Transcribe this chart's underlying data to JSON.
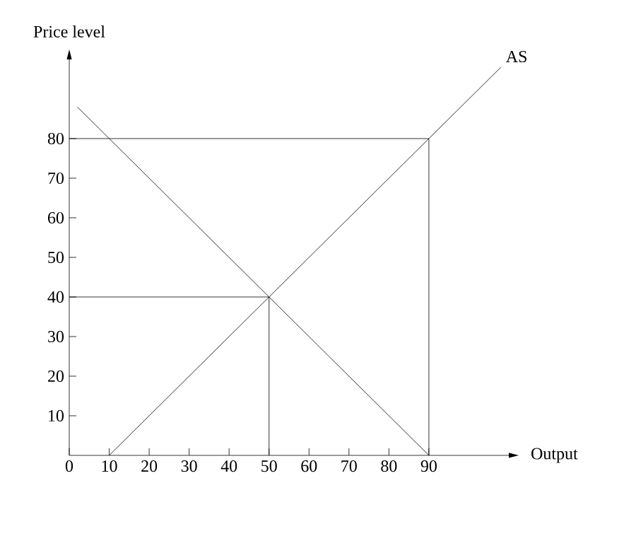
{
  "chart_data": {
    "type": "line",
    "xlabel": "Output",
    "ylabel": "Price level",
    "xlim": [
      0,
      110
    ],
    "ylim": [
      0,
      100
    ],
    "xticks": [
      0,
      10,
      20,
      30,
      40,
      50,
      60,
      70,
      80,
      90
    ],
    "yticks": [
      10,
      20,
      30,
      40,
      50,
      60,
      70,
      80
    ],
    "series": [
      {
        "name": "AS",
        "color": "#000000",
        "x": [
          10,
          108
        ],
        "values": [
          0,
          98
        ]
      },
      {
        "color": "#000000",
        "x": [
          2,
          90
        ],
        "values": [
          88,
          0
        ]
      },
      {
        "color": "#000000",
        "x": [
          0,
          90,
          90
        ],
        "values": [
          80,
          80,
          0
        ]
      },
      {
        "color": "#000000",
        "x": [
          0,
          50,
          50
        ],
        "values": [
          40,
          40,
          0
        ]
      }
    ]
  }
}
